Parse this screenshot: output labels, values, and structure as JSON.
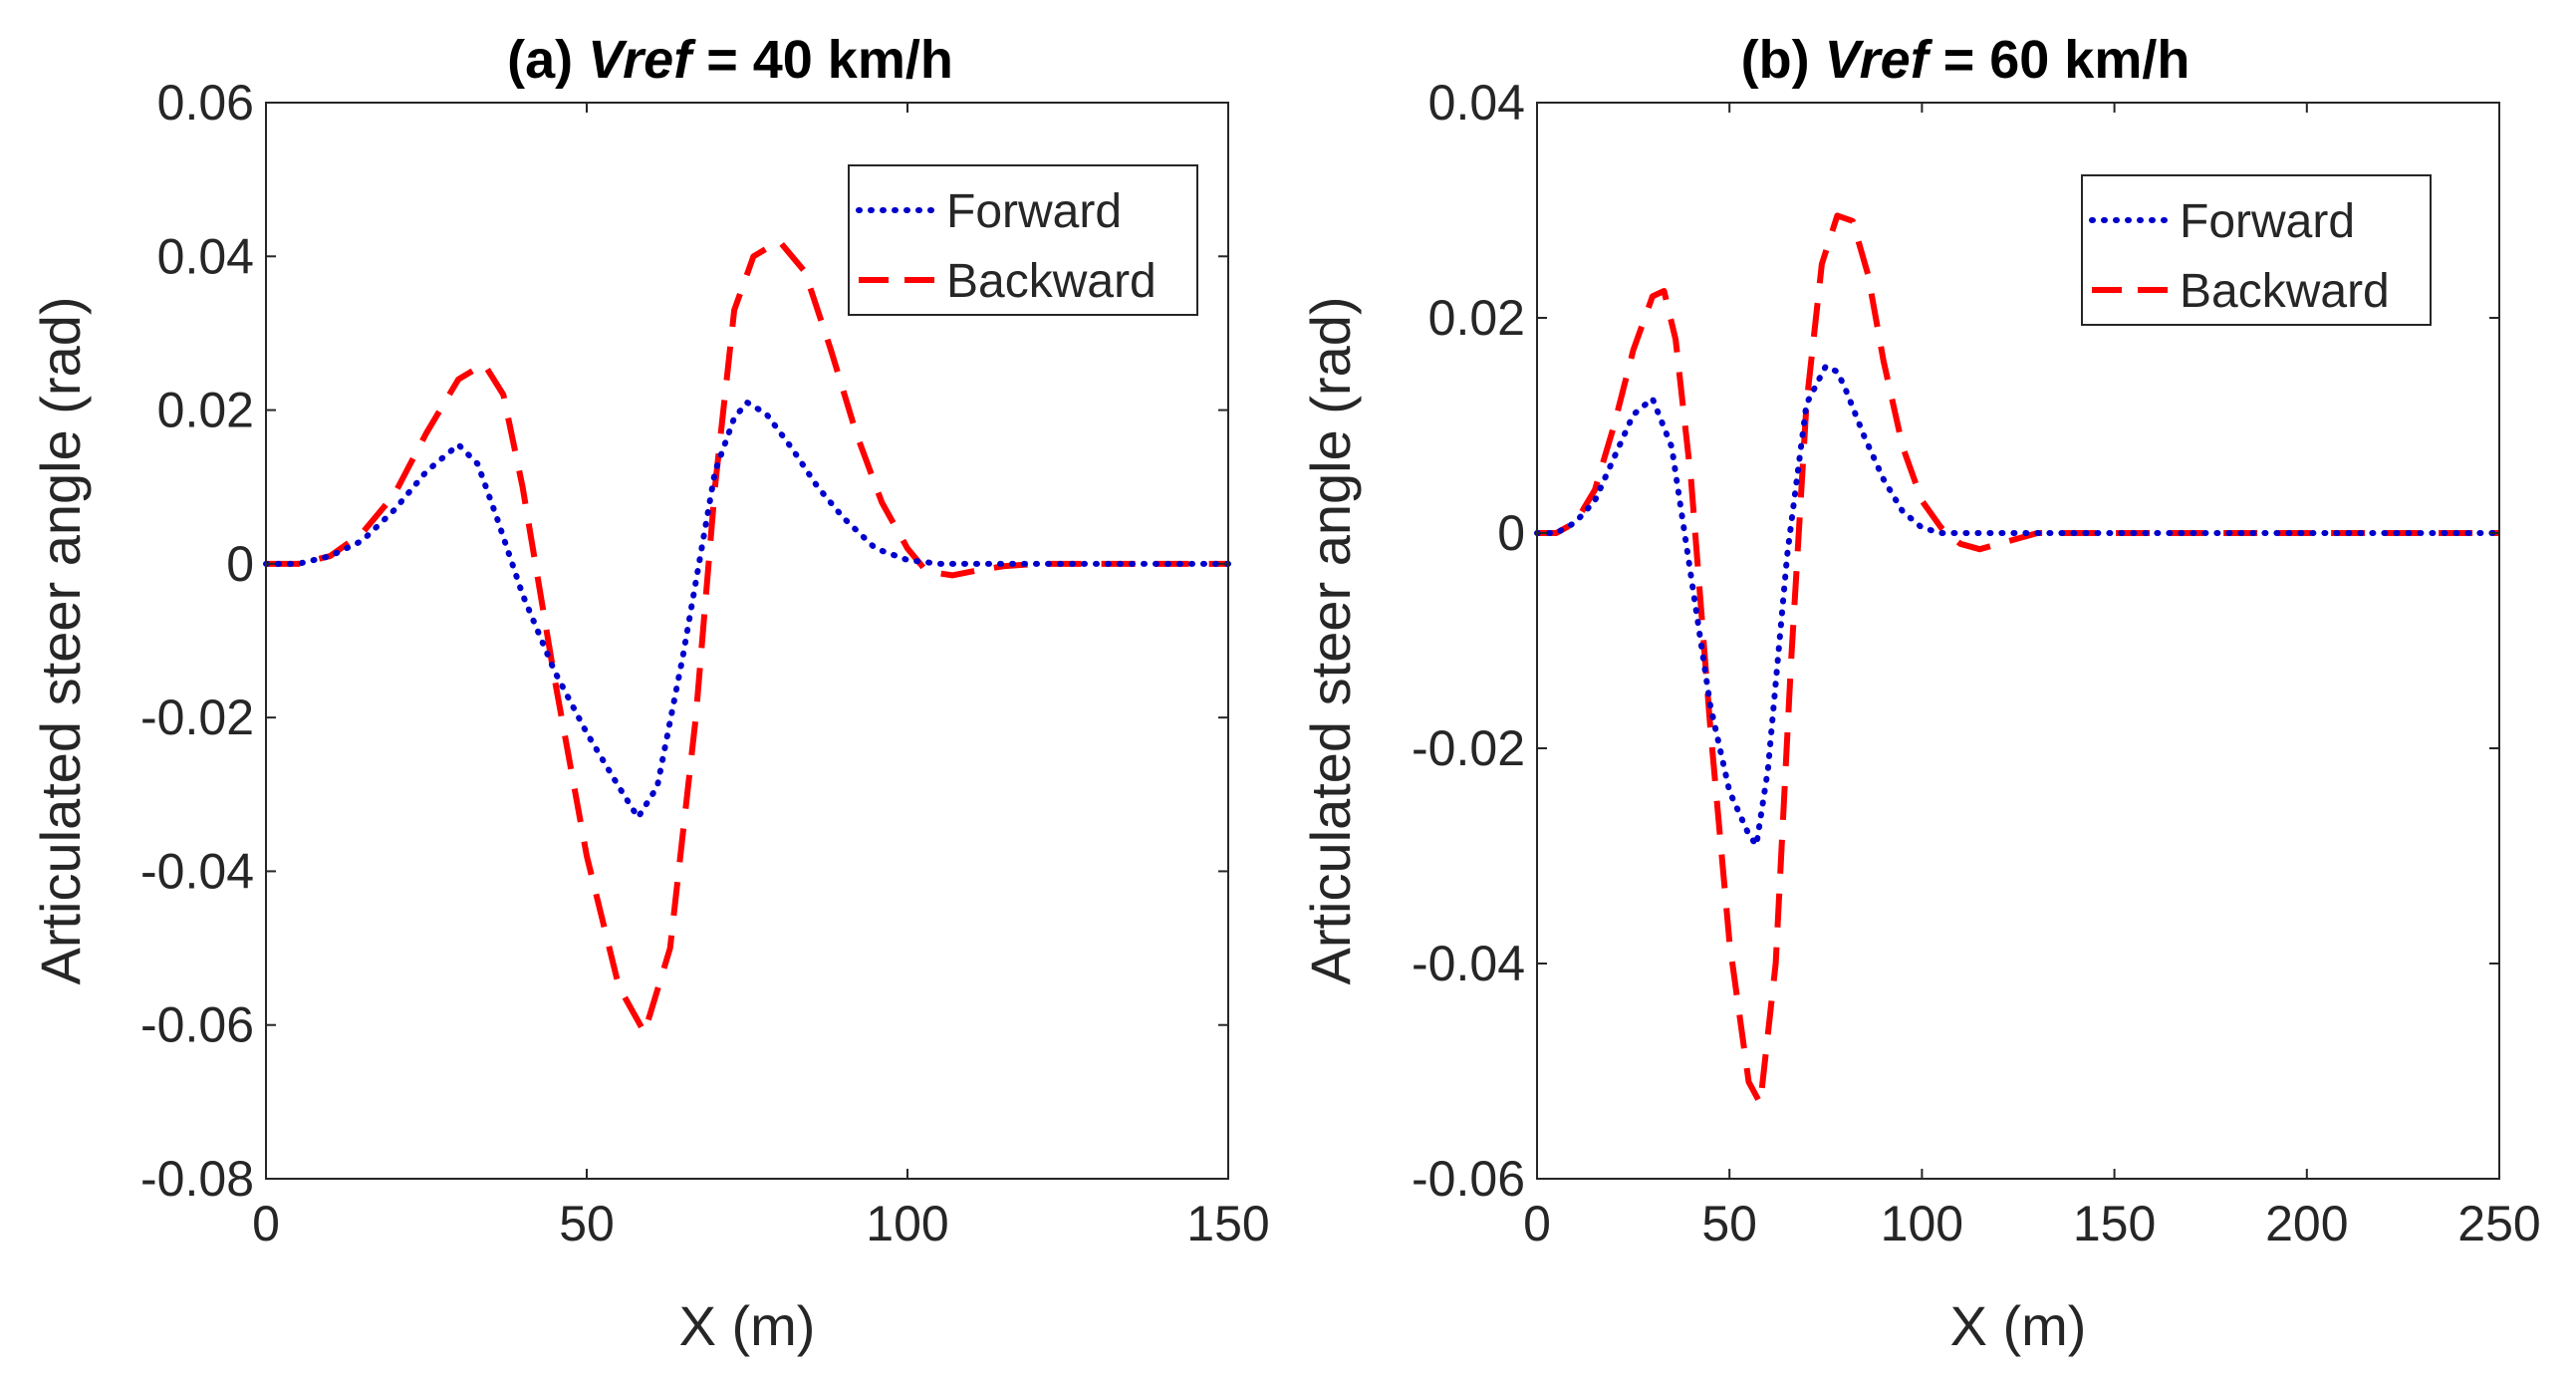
{
  "chart_data": [
    {
      "type": "line",
      "panel": "a",
      "title_prefix": "(a) ",
      "title_var": "Vref",
      "title_suffix": " = 40 km/h",
      "xlabel": "X (m)",
      "ylabel": "Articulated steer angle (rad)",
      "xlim": [
        0,
        150
      ],
      "ylim": [
        -0.08,
        0.06
      ],
      "xticks": [
        0,
        50,
        100,
        150
      ],
      "xtick_labels": [
        "0",
        "50",
        "100",
        "150"
      ],
      "yticks": [
        -0.08,
        -0.06,
        -0.04,
        -0.02,
        0,
        0.02,
        0.04,
        0.06
      ],
      "ytick_labels": [
        "-0.08",
        "-0.06",
        "-0.04",
        "-0.02",
        "0",
        "0.02",
        "0.04",
        "0.06"
      ],
      "legend_position": "top-right",
      "series": [
        {
          "name": "Forward",
          "color": "#0000cc",
          "style": "dotted",
          "x": [
            0,
            5,
            10,
            15,
            20,
            25,
            30,
            33,
            36,
            40,
            45,
            50,
            55,
            58,
            61,
            65,
            70,
            73,
            75,
            78,
            82,
            86,
            90,
            95,
            100,
            105,
            110,
            120,
            130,
            140,
            150
          ],
          "y": [
            0,
            0,
            0.001,
            0.003,
            0.007,
            0.012,
            0.0155,
            0.013,
            0.006,
            -0.004,
            -0.014,
            -0.022,
            -0.029,
            -0.033,
            -0.029,
            -0.012,
            0.012,
            0.019,
            0.021,
            0.0195,
            0.015,
            0.01,
            0.006,
            0.002,
            0.0005,
            0,
            0,
            0,
            0,
            0,
            0
          ]
        },
        {
          "name": "Backward",
          "color": "#ff0000",
          "style": "dashed",
          "x": [
            0,
            5,
            10,
            15,
            20,
            25,
            30,
            34,
            37,
            40,
            45,
            50,
            55,
            59,
            63,
            67,
            70,
            73,
            76,
            80,
            84,
            88,
            92,
            96,
            100,
            103,
            107,
            110,
            115,
            120,
            130,
            140,
            150
          ],
          "y": [
            0,
            0,
            0.001,
            0.004,
            0.009,
            0.017,
            0.024,
            0.026,
            0.022,
            0.01,
            -0.015,
            -0.038,
            -0.055,
            -0.061,
            -0.05,
            -0.02,
            0.01,
            0.033,
            0.04,
            0.042,
            0.038,
            0.028,
            0.017,
            0.008,
            0.002,
            -0.001,
            -0.0015,
            -0.001,
            -0.0003,
            0,
            0,
            0,
            0
          ]
        }
      ]
    },
    {
      "type": "line",
      "panel": "b",
      "title_prefix": "(b) ",
      "title_var": "Vref",
      "title_suffix": " = 60 km/h",
      "xlabel": "X (m)",
      "ylabel": "Articulated steer angle (rad)",
      "xlim": [
        0,
        250
      ],
      "ylim": [
        -0.06,
        0.04
      ],
      "xticks": [
        0,
        50,
        100,
        150,
        200,
        250
      ],
      "xtick_labels": [
        "0",
        "50",
        "100",
        "150",
        "200",
        "250"
      ],
      "yticks": [
        -0.06,
        -0.04,
        -0.02,
        0,
        0.02,
        0.04
      ],
      "ytick_labels": [
        "-0.06",
        "-0.04",
        "-0.02",
        "0",
        "0.02",
        "0.04"
      ],
      "legend_position": "top-right",
      "series": [
        {
          "name": "Forward",
          "color": "#0000cc",
          "style": "dotted",
          "x": [
            0,
            5,
            10,
            15,
            20,
            25,
            30,
            35,
            40,
            45,
            50,
            55,
            57,
            60,
            65,
            70,
            75,
            78,
            80,
            85,
            90,
            95,
            100,
            105,
            110,
            120,
            150,
            200,
            250
          ],
          "y": [
            0,
            0,
            0.001,
            0.003,
            0.007,
            0.011,
            0.0125,
            0.008,
            -0.004,
            -0.016,
            -0.024,
            -0.028,
            -0.029,
            -0.022,
            -0.002,
            0.012,
            0.0155,
            0.015,
            0.0135,
            0.009,
            0.005,
            0.002,
            0.0005,
            0,
            0,
            0,
            0,
            0,
            0
          ]
        },
        {
          "name": "Backward",
          "color": "#ff0000",
          "style": "dashed",
          "x": [
            0,
            5,
            10,
            15,
            20,
            25,
            30,
            33,
            36,
            40,
            45,
            50,
            55,
            58,
            62,
            66,
            70,
            74,
            78,
            82,
            86,
            90,
            95,
            100,
            105,
            110,
            115,
            120,
            130,
            150,
            200,
            250
          ],
          "y": [
            0,
            0,
            0.001,
            0.004,
            0.01,
            0.017,
            0.022,
            0.0225,
            0.018,
            0.005,
            -0.018,
            -0.038,
            -0.051,
            -0.053,
            -0.04,
            -0.012,
            0.012,
            0.025,
            0.0295,
            0.029,
            0.024,
            0.016,
            0.008,
            0.003,
            0.0005,
            -0.001,
            -0.0015,
            -0.001,
            0,
            0,
            0,
            0
          ]
        }
      ]
    }
  ]
}
